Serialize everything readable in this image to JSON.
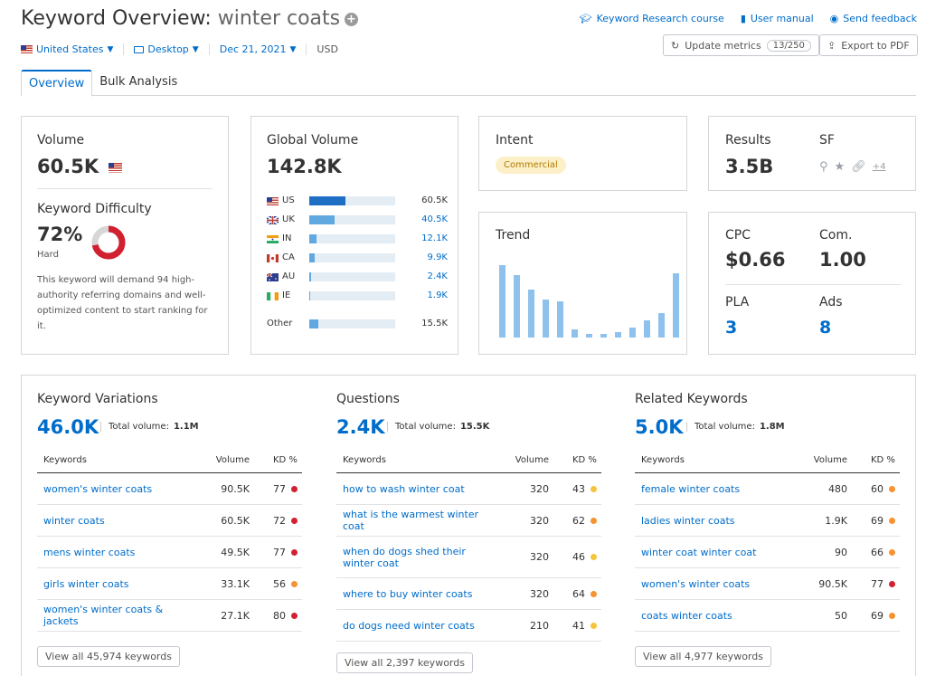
{
  "header": {
    "title_prefix": "Keyword Overview:",
    "keyword": "winter coats",
    "plus_glyph": "+",
    "links": [
      {
        "label": "Keyword Research course",
        "icon": "graduation-cap-icon"
      },
      {
        "label": "User manual",
        "icon": "book-icon"
      },
      {
        "label": "Send feedback",
        "icon": "speech-bubble-icon"
      }
    ],
    "filters": {
      "country": "United States",
      "device": "Desktop",
      "date": "Dec 21, 2021",
      "currency": "USD"
    },
    "update_button": {
      "label": "Update metrics",
      "count": "13/250"
    },
    "export_button": {
      "label": "Export to PDF"
    }
  },
  "tabs": [
    "Overview",
    "Bulk Analysis"
  ],
  "volume": {
    "label": "Volume",
    "value": "60.5K"
  },
  "difficulty": {
    "label": "Keyword Difficulty",
    "value": "72%",
    "rating": "Hard",
    "percent": 72,
    "color": "#d1202f",
    "description": "This keyword will demand 94 high-authority referring domains and well-optimized content to start ranking for it."
  },
  "global_volume": {
    "label": "Global Volume",
    "value": "142.8K",
    "countries": [
      {
        "code": "US",
        "value": "60.5K",
        "share": 0.42
      },
      {
        "code": "UK",
        "value": "40.5K",
        "share": 0.29
      },
      {
        "code": "IN",
        "value": "12.1K",
        "share": 0.08
      },
      {
        "code": "CA",
        "value": "9.9K",
        "share": 0.065
      },
      {
        "code": "AU",
        "value": "2.4K",
        "share": 0.02
      },
      {
        "code": "IE",
        "value": "1.9K",
        "share": 0.015
      }
    ],
    "other": {
      "label": "Other",
      "value": "15.5K",
      "share": 0.11
    }
  },
  "intent": {
    "label": "Intent",
    "value": "Commercial"
  },
  "results": {
    "label": "Results",
    "value": "3.5B",
    "sf_label": "SF",
    "sf_more": "+4"
  },
  "trend": {
    "label": "Trend",
    "values": [
      1.0,
      0.86,
      0.66,
      0.52,
      0.5,
      0.11,
      0.05,
      0.05,
      0.08,
      0.14,
      0.24,
      0.34,
      0.89
    ]
  },
  "cpc": {
    "label": "CPC",
    "value": "$0.66"
  },
  "competition": {
    "label": "Com.",
    "value": "1.00"
  },
  "pla": {
    "label": "PLA",
    "value": "3"
  },
  "ads": {
    "label": "Ads",
    "value": "8"
  },
  "table_headers": {
    "keywords": "Keywords",
    "volume": "Volume",
    "kd": "KD %"
  },
  "kd_colors": {
    "red": "#d1202f",
    "orange": "#f59331",
    "yellow": "#f5c43d"
  },
  "variations": {
    "title": "Keyword Variations",
    "count": "46.0K",
    "total_label": "Total volume:",
    "total_value": "1.1M",
    "rows": [
      {
        "keyword": "women's winter coats",
        "volume": "90.5K",
        "kd": "77",
        "color": "#d1202f"
      },
      {
        "keyword": "winter coats",
        "volume": "60.5K",
        "kd": "72",
        "color": "#d1202f"
      },
      {
        "keyword": "mens winter coats",
        "volume": "49.5K",
        "kd": "77",
        "color": "#d1202f"
      },
      {
        "keyword": "girls winter coats",
        "volume": "33.1K",
        "kd": "56",
        "color": "#f59331"
      },
      {
        "keyword": "women's winter coats & jackets",
        "volume": "27.1K",
        "kd": "80",
        "color": "#d1202f"
      }
    ],
    "view_all": "View all 45,974 keywords"
  },
  "questions": {
    "title": "Questions",
    "count": "2.4K",
    "total_label": "Total volume:",
    "total_value": "15.5K",
    "rows": [
      {
        "keyword": "how to wash winter coat",
        "volume": "320",
        "kd": "43",
        "color": "#f5c43d"
      },
      {
        "keyword": "what is the warmest winter coat",
        "volume": "320",
        "kd": "62",
        "color": "#f59331"
      },
      {
        "keyword": "when do dogs shed their winter coat",
        "volume": "320",
        "kd": "46",
        "color": "#f5c43d"
      },
      {
        "keyword": "where to buy winter coats",
        "volume": "320",
        "kd": "64",
        "color": "#f59331"
      },
      {
        "keyword": "do dogs need winter coats",
        "volume": "210",
        "kd": "41",
        "color": "#f5c43d"
      }
    ],
    "view_all": "View all 2,397 keywords"
  },
  "related": {
    "title": "Related Keywords",
    "count": "5.0K",
    "total_label": "Total volume:",
    "total_value": "1.8M",
    "rows": [
      {
        "keyword": "female winter coats",
        "volume": "480",
        "kd": "60",
        "color": "#f59331"
      },
      {
        "keyword": "ladies winter coats",
        "volume": "1.9K",
        "kd": "69",
        "color": "#f59331"
      },
      {
        "keyword": "winter coat winter coat",
        "volume": "90",
        "kd": "66",
        "color": "#f59331"
      },
      {
        "keyword": "women's winter coats",
        "volume": "90.5K",
        "kd": "77",
        "color": "#d1202f"
      },
      {
        "keyword": "coats winter coats",
        "volume": "50",
        "kd": "69",
        "color": "#f59331"
      }
    ],
    "view_all": "View all 4,977 keywords"
  }
}
